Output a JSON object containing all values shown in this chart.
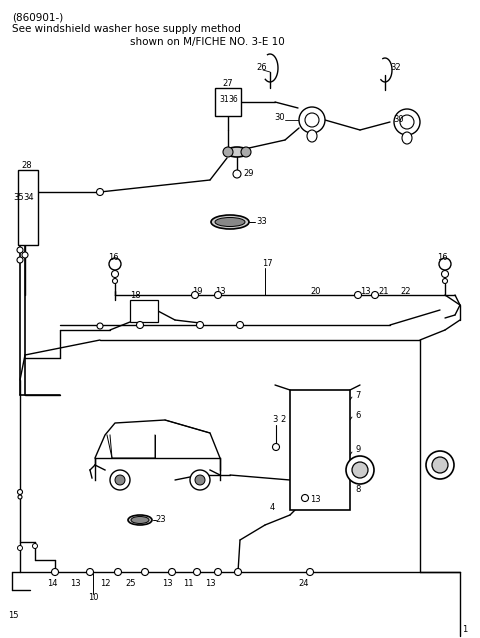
{
  "title_line1": "(860901-)",
  "title_line2": "See windshield washer hose supply method",
  "title_line3": "shown on M/FICHE NO. 3-E 10",
  "bg_color": "#ffffff",
  "fig_width": 4.8,
  "fig_height": 6.38,
  "dpi": 100
}
